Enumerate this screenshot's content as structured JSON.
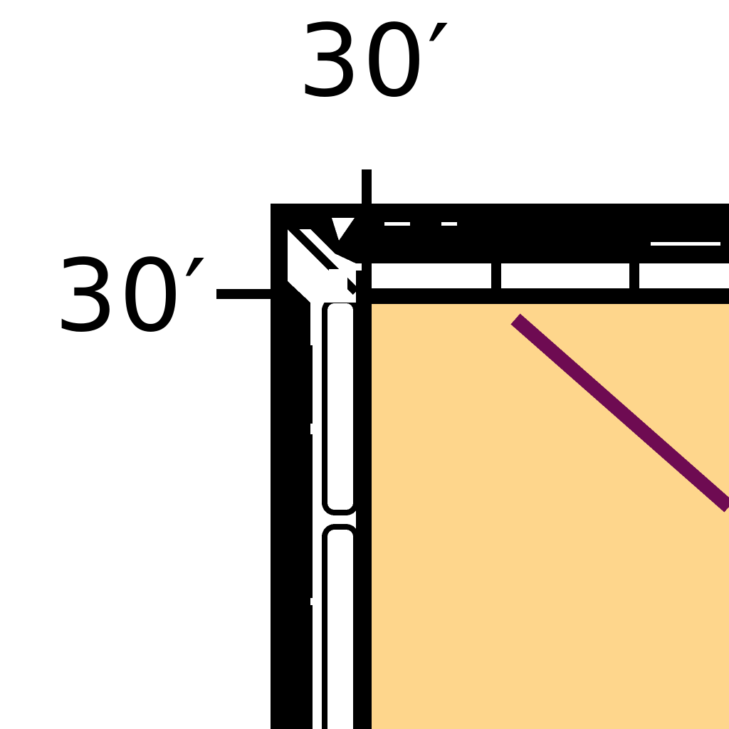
{
  "labels": {
    "top_offset": "30′",
    "left_offset": "30′"
  },
  "colors": {
    "ink": "#000000",
    "paper": "#ffffff",
    "parcel_fill": "#fed68c",
    "diagonal_line": "#6e0b52"
  }
}
